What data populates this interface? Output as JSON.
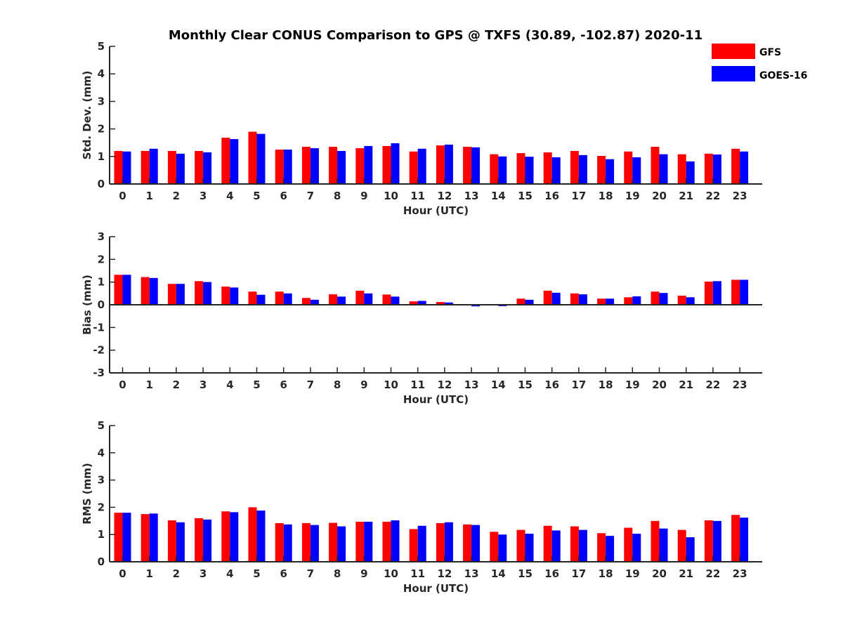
{
  "title": "Monthly Clear CONUS Comparison to GPS @ TXFS (30.89, -102.87) 2020-11",
  "legend": [
    {
      "label": "GFS",
      "color": "#ff0000"
    },
    {
      "label": "GOES-16",
      "color": "#0000ff"
    }
  ],
  "chart_data": [
    {
      "type": "bar",
      "xlabel": "Hour (UTC)",
      "ylabel": "Std. Dev. (mm)",
      "ylim": [
        0,
        5
      ],
      "yticks": [
        0,
        1,
        2,
        3,
        4,
        5
      ],
      "categories": [
        "0",
        "1",
        "2",
        "3",
        "4",
        "5",
        "6",
        "7",
        "8",
        "9",
        "10",
        "11",
        "12",
        "13",
        "14",
        "15",
        "16",
        "17",
        "18",
        "19",
        "20",
        "21",
        "22",
        "23"
      ],
      "series": [
        {
          "name": "GFS",
          "color": "#ff0000",
          "values": [
            1.2,
            1.2,
            1.2,
            1.2,
            1.68,
            1.9,
            1.25,
            1.35,
            1.35,
            1.3,
            1.38,
            1.18,
            1.4,
            1.35,
            1.08,
            1.12,
            1.15,
            1.2,
            1.02,
            1.18,
            1.35,
            1.08,
            1.1,
            1.28
          ]
        },
        {
          "name": "GOES-16",
          "color": "#0000ff",
          "values": [
            1.18,
            1.28,
            1.1,
            1.15,
            1.63,
            1.82,
            1.25,
            1.3,
            1.2,
            1.38,
            1.48,
            1.28,
            1.43,
            1.33,
            1.0,
            0.99,
            0.97,
            1.05,
            0.9,
            0.97,
            1.08,
            0.82,
            1.07,
            1.18
          ]
        }
      ]
    },
    {
      "type": "bar",
      "xlabel": "Hour (UTC)",
      "ylabel": "Bias (mm)",
      "ylim": [
        -3,
        3
      ],
      "yticks": [
        -3,
        -2,
        -1,
        0,
        1,
        2,
        3
      ],
      "categories": [
        "0",
        "1",
        "2",
        "3",
        "4",
        "5",
        "6",
        "7",
        "8",
        "9",
        "10",
        "11",
        "12",
        "13",
        "14",
        "15",
        "16",
        "17",
        "18",
        "19",
        "20",
        "21",
        "22",
        "23"
      ],
      "series": [
        {
          "name": "GFS",
          "color": "#ff0000",
          "values": [
            1.32,
            1.22,
            0.92,
            1.04,
            0.8,
            0.58,
            0.58,
            0.3,
            0.46,
            0.62,
            0.45,
            0.15,
            0.12,
            -0.03,
            -0.03,
            0.27,
            0.62,
            0.5,
            0.27,
            0.33,
            0.58,
            0.4,
            1.02,
            1.1
          ]
        },
        {
          "name": "GOES-16",
          "color": "#0000ff",
          "values": [
            1.32,
            1.18,
            0.92,
            1.0,
            0.76,
            0.44,
            0.5,
            0.22,
            0.36,
            0.5,
            0.36,
            0.17,
            0.1,
            -0.07,
            -0.06,
            0.22,
            0.53,
            0.46,
            0.27,
            0.37,
            0.52,
            0.33,
            1.04,
            1.1
          ]
        }
      ]
    },
    {
      "type": "bar",
      "xlabel": "Hour (UTC)",
      "ylabel": "RMS (mm)",
      "ylim": [
        0,
        5
      ],
      "yticks": [
        0,
        1,
        2,
        3,
        4,
        5
      ],
      "categories": [
        "0",
        "1",
        "2",
        "3",
        "4",
        "5",
        "6",
        "7",
        "8",
        "9",
        "10",
        "11",
        "12",
        "13",
        "14",
        "15",
        "16",
        "17",
        "18",
        "19",
        "20",
        "21",
        "22",
        "23"
      ],
      "series": [
        {
          "name": "GFS",
          "color": "#ff0000",
          "values": [
            1.8,
            1.75,
            1.52,
            1.6,
            1.85,
            2.0,
            1.42,
            1.42,
            1.43,
            1.47,
            1.47,
            1.2,
            1.42,
            1.37,
            1.1,
            1.17,
            1.32,
            1.3,
            1.05,
            1.25,
            1.5,
            1.17,
            1.52,
            1.72
          ]
        },
        {
          "name": "GOES-16",
          "color": "#0000ff",
          "values": [
            1.8,
            1.77,
            1.45,
            1.55,
            1.82,
            1.88,
            1.37,
            1.35,
            1.3,
            1.47,
            1.52,
            1.32,
            1.45,
            1.35,
            1.0,
            1.03,
            1.15,
            1.17,
            0.95,
            1.03,
            1.22,
            0.9,
            1.5,
            1.62
          ]
        }
      ]
    }
  ]
}
